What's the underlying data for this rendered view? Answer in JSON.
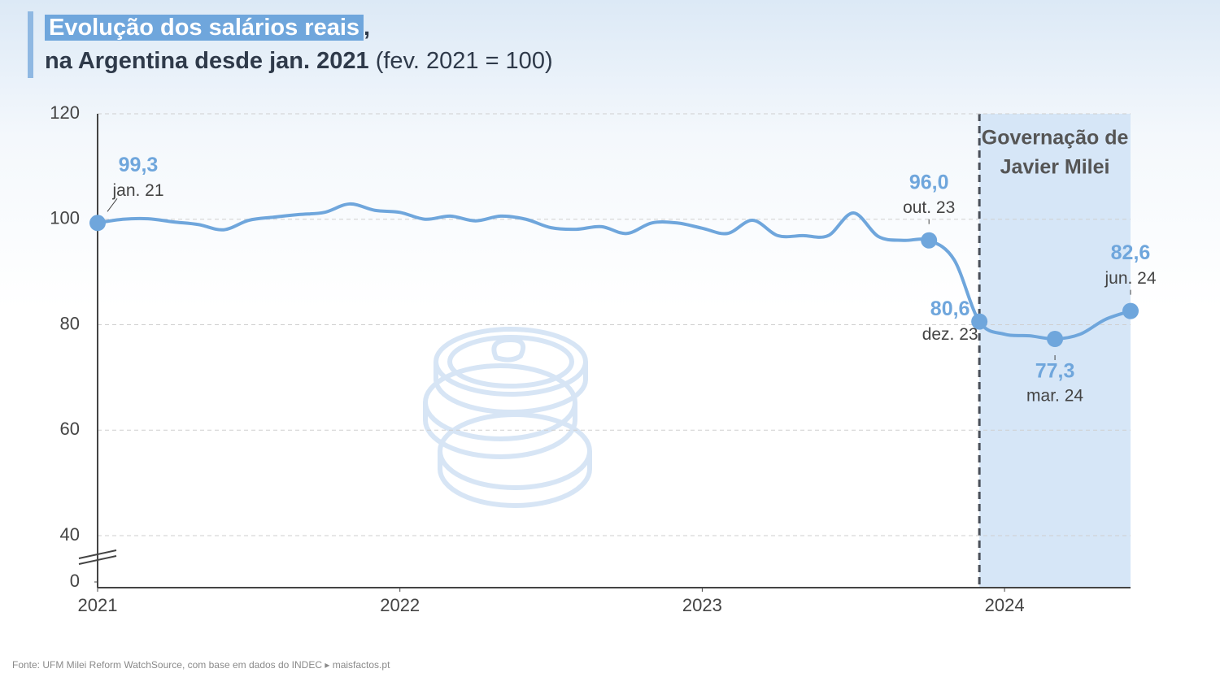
{
  "chart_data": {
    "type": "line",
    "title_highlight": "Evolução dos salários reais",
    "title_comma": ",",
    "title_line2": "na Argentina desde jan. 2021",
    "subtitle": "(fev. 2021 = 100)",
    "source": "Fonte: UFM Milei Reform WatchSource, com base em dados do INDEC ▸ maisfactos.pt",
    "x": [
      2021,
      2021.0833,
      2021.1667,
      2021.25,
      2021.3333,
      2021.4167,
      2021.5,
      2021.5833,
      2021.6667,
      2021.75,
      2021.8333,
      2021.9167,
      2022,
      2022.0833,
      2022.1667,
      2022.25,
      2022.3333,
      2022.4167,
      2022.5,
      2022.5833,
      2022.6667,
      2022.75,
      2022.8333,
      2022.9167,
      2023,
      2023.0833,
      2023.1667,
      2023.25,
      2023.3333,
      2023.4167,
      2023.5,
      2023.5833,
      2023.6667,
      2023.75,
      2023.8333,
      2023.9167,
      2024,
      2024.0833,
      2024.1667,
      2024.25,
      2024.3333,
      2024.4167
    ],
    "series": [
      {
        "name": "Salários reais",
        "color": "#6fa6dc",
        "values": [
          99.3,
          100.0,
          100.1,
          99.5,
          99.0,
          98.0,
          99.8,
          100.4,
          100.9,
          101.3,
          102.9,
          101.7,
          101.3,
          100.0,
          100.6,
          99.7,
          100.6,
          100.0,
          98.4,
          98.1,
          98.6,
          97.3,
          99.3,
          99.3,
          98.3,
          97.3,
          99.8,
          96.9,
          96.9,
          96.9,
          101.2,
          96.7,
          96.0,
          96.0,
          92.3,
          80.6,
          78.2,
          77.9,
          77.3,
          78.2,
          81.0,
          82.6
        ],
        "value_labels": [
          "99,3",
          null,
          null,
          null,
          null,
          null,
          null,
          null,
          null,
          null,
          null,
          null,
          null,
          null,
          null,
          null,
          null,
          null,
          null,
          null,
          null,
          null,
          null,
          null,
          null,
          null,
          null,
          null,
          null,
          null,
          null,
          null,
          null,
          "96,0",
          null,
          "80,6",
          null,
          null,
          "77,3",
          null,
          null,
          "82,6"
        ],
        "date_labels": [
          "jan. 21",
          null,
          null,
          null,
          null,
          null,
          null,
          null,
          null,
          null,
          null,
          null,
          null,
          null,
          null,
          null,
          null,
          null,
          null,
          null,
          null,
          null,
          null,
          null,
          null,
          null,
          null,
          null,
          null,
          null,
          null,
          null,
          null,
          "out. 23",
          null,
          "dez. 23",
          null,
          null,
          "mar. 24",
          null,
          null,
          "jun. 24"
        ]
      }
    ],
    "xlim": [
      2021,
      2024.4167
    ],
    "xticks": [
      2021,
      2022,
      2023,
      2024
    ],
    "ylim": [
      40,
      120
    ],
    "yticks": [
      0,
      40,
      60,
      80,
      100,
      120
    ],
    "axis_break": true,
    "grid": true,
    "highlight": {
      "x_start": 2023.9167,
      "label_lines": [
        "Governação de",
        "Javier Milei"
      ]
    }
  }
}
